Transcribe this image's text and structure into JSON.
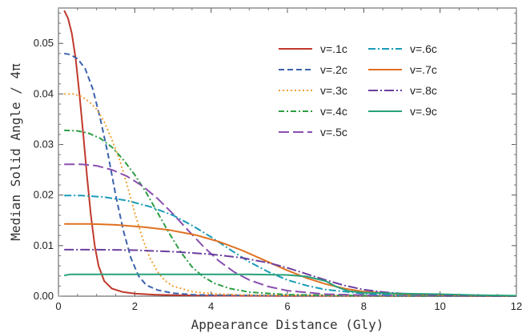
{
  "chart_data": {
    "type": "line",
    "title": "",
    "xlabel": "Appearance Distance (Gly)",
    "ylabel": "Median Solid Angle / 4π",
    "xlim": [
      0,
      12
    ],
    "ylim": [
      0,
      0.057
    ],
    "x_ticks": [
      0,
      2,
      4,
      6,
      8,
      10,
      12
    ],
    "x_tick_labels": [
      "0",
      "2",
      "4",
      "6",
      "8",
      "10",
      "12"
    ],
    "y_ticks": [
      0.0,
      0.01,
      0.02,
      0.03,
      0.04,
      0.05
    ],
    "y_tick_labels": [
      "0.00",
      "0.01",
      "0.02",
      "0.03",
      "0.04",
      "0.05"
    ],
    "grid": false,
    "zero_line": "dotted",
    "legend_position": "top-right",
    "series": [
      {
        "name": "v=.1c",
        "color": "#c0392b",
        "dash": "solid",
        "points": [
          [
            0.15,
            0.0565
          ],
          [
            0.25,
            0.055
          ],
          [
            0.35,
            0.052
          ],
          [
            0.45,
            0.047
          ],
          [
            0.55,
            0.04
          ],
          [
            0.65,
            0.032
          ],
          [
            0.75,
            0.0235
          ],
          [
            0.85,
            0.016
          ],
          [
            0.95,
            0.01
          ],
          [
            1.05,
            0.006
          ],
          [
            1.2,
            0.003
          ],
          [
            1.4,
            0.0015
          ],
          [
            1.7,
            0.0008
          ],
          [
            2.0,
            0.0005
          ],
          [
            2.5,
            0.0003
          ],
          [
            3.0,
            0.0002
          ],
          [
            4.0,
            0.0001
          ],
          [
            6.0,
            5e-05
          ],
          [
            8.0,
            3e-05
          ],
          [
            12.0,
            1e-05
          ]
        ]
      },
      {
        "name": "v=.2c",
        "color": "#3b62ad",
        "dash": "7,4",
        "points": [
          [
            0.15,
            0.048
          ],
          [
            0.3,
            0.0478
          ],
          [
            0.5,
            0.047
          ],
          [
            0.7,
            0.045
          ],
          [
            0.9,
            0.041
          ],
          [
            1.1,
            0.035
          ],
          [
            1.3,
            0.028
          ],
          [
            1.5,
            0.02
          ],
          [
            1.7,
            0.013
          ],
          [
            1.9,
            0.0075
          ],
          [
            2.1,
            0.004
          ],
          [
            2.3,
            0.0022
          ],
          [
            2.6,
            0.0012
          ],
          [
            3.0,
            0.0006
          ],
          [
            3.5,
            0.0003
          ],
          [
            4.0,
            0.0002
          ],
          [
            6.0,
            0.0001
          ],
          [
            8.0,
            5e-05
          ],
          [
            12.0,
            2e-05
          ]
        ]
      },
      {
        "name": "v=.3c",
        "color": "#f0a030",
        "dash": "2,3",
        "points": [
          [
            0.15,
            0.04
          ],
          [
            0.4,
            0.04
          ],
          [
            0.6,
            0.0395
          ],
          [
            0.8,
            0.0385
          ],
          [
            1.0,
            0.037
          ],
          [
            1.2,
            0.0345
          ],
          [
            1.4,
            0.031
          ],
          [
            1.6,
            0.027
          ],
          [
            1.8,
            0.022
          ],
          [
            2.0,
            0.0165
          ],
          [
            2.2,
            0.0115
          ],
          [
            2.4,
            0.0075
          ],
          [
            2.6,
            0.0048
          ],
          [
            2.8,
            0.003
          ],
          [
            3.0,
            0.002
          ],
          [
            3.5,
            0.0009
          ],
          [
            4.0,
            0.0005
          ],
          [
            5.0,
            0.0002
          ],
          [
            7.0,
            0.0001
          ],
          [
            12.0,
            3e-05
          ]
        ]
      },
      {
        "name": "v=.4c",
        "color": "#2e9e44",
        "dash": "7,3,2,3",
        "points": [
          [
            0.15,
            0.0328
          ],
          [
            0.5,
            0.0327
          ],
          [
            0.8,
            0.0322
          ],
          [
            1.1,
            0.0312
          ],
          [
            1.4,
            0.0295
          ],
          [
            1.7,
            0.027
          ],
          [
            2.0,
            0.024
          ],
          [
            2.3,
            0.0205
          ],
          [
            2.6,
            0.0165
          ],
          [
            2.9,
            0.0125
          ],
          [
            3.2,
            0.0088
          ],
          [
            3.5,
            0.0058
          ],
          [
            3.8,
            0.0038
          ],
          [
            4.1,
            0.0025
          ],
          [
            4.5,
            0.0015
          ],
          [
            5.0,
            0.0008
          ],
          [
            6.0,
            0.0003
          ],
          [
            8.0,
            0.0001
          ],
          [
            12.0,
            3e-05
          ]
        ]
      },
      {
        "name": "v=.5c",
        "color": "#8a4fb0",
        "dash": "13,5",
        "points": [
          [
            0.15,
            0.0261
          ],
          [
            0.6,
            0.0261
          ],
          [
            1.0,
            0.0258
          ],
          [
            1.4,
            0.025
          ],
          [
            1.8,
            0.0237
          ],
          [
            2.2,
            0.0218
          ],
          [
            2.6,
            0.0193
          ],
          [
            3.0,
            0.0163
          ],
          [
            3.4,
            0.013
          ],
          [
            3.8,
            0.0098
          ],
          [
            4.2,
            0.007
          ],
          [
            4.6,
            0.0048
          ],
          [
            5.0,
            0.0032
          ],
          [
            5.5,
            0.0019
          ],
          [
            6.0,
            0.0011
          ],
          [
            7.0,
            0.0004
          ],
          [
            8.0,
            0.0002
          ],
          [
            10.0,
            0.0001
          ],
          [
            12.0,
            4e-05
          ]
        ]
      },
      {
        "name": "v=.6c",
        "color": "#1a9bb8",
        "dash": "9,3,2,3",
        "points": [
          [
            0.15,
            0.0199
          ],
          [
            0.6,
            0.0199
          ],
          [
            1.2,
            0.0196
          ],
          [
            1.8,
            0.0189
          ],
          [
            2.4,
            0.0177
          ],
          [
            3.0,
            0.016
          ],
          [
            3.5,
            0.014
          ],
          [
            4.0,
            0.0117
          ],
          [
            4.5,
            0.0092
          ],
          [
            5.0,
            0.0068
          ],
          [
            5.5,
            0.0048
          ],
          [
            6.0,
            0.0032
          ],
          [
            6.5,
            0.0021
          ],
          [
            7.0,
            0.0013
          ],
          [
            8.0,
            0.0005
          ],
          [
            9.0,
            0.0002
          ],
          [
            10.0,
            0.0001
          ],
          [
            12.0,
            5e-05
          ]
        ]
      },
      {
        "name": "v=.7c",
        "color": "#e07020",
        "dash": "solid",
        "points": [
          [
            0.15,
            0.0143
          ],
          [
            0.8,
            0.0143
          ],
          [
            1.5,
            0.0141
          ],
          [
            2.2,
            0.0137
          ],
          [
            2.9,
            0.0131
          ],
          [
            3.6,
            0.0121
          ],
          [
            4.2,
            0.0108
          ],
          [
            4.8,
            0.0091
          ],
          [
            5.4,
            0.0071
          ],
          [
            6.0,
            0.0051
          ],
          [
            6.5,
            0.0036
          ],
          [
            7.0,
            0.0024
          ],
          [
            7.5,
            0.0015
          ],
          [
            8.0,
            0.0009
          ],
          [
            9.0,
            0.0004
          ],
          [
            10.0,
            0.0002
          ],
          [
            11.0,
            0.0001
          ],
          [
            12.0,
            5e-05
          ]
        ]
      },
      {
        "name": "v=.8c",
        "color": "#6b3fa0",
        "dash": "12,3,2,3",
        "points": [
          [
            0.15,
            0.0092
          ],
          [
            1.0,
            0.0092
          ],
          [
            2.0,
            0.0091
          ],
          [
            3.0,
            0.0088
          ],
          [
            4.0,
            0.0083
          ],
          [
            4.8,
            0.0076
          ],
          [
            5.5,
            0.0066
          ],
          [
            6.0,
            0.0056
          ],
          [
            6.5,
            0.0044
          ],
          [
            7.0,
            0.0032
          ],
          [
            7.5,
            0.0021
          ],
          [
            8.0,
            0.0013
          ],
          [
            8.5,
            0.0008
          ],
          [
            9.0,
            0.0005
          ],
          [
            10.0,
            0.0002
          ],
          [
            11.0,
            0.0001
          ],
          [
            12.0,
            5e-05
          ]
        ]
      },
      {
        "name": "v=.9c",
        "color": "#27a07a",
        "dash": "solid",
        "points": [
          [
            0.15,
            0.0041
          ],
          [
            0.3,
            0.0043
          ],
          [
            1.0,
            0.0043
          ],
          [
            2.0,
            0.0043
          ],
          [
            3.0,
            0.0043
          ],
          [
            4.0,
            0.0043
          ],
          [
            5.0,
            0.0043
          ],
          [
            6.0,
            0.0042
          ],
          [
            6.5,
            0.0039
          ],
          [
            7.0,
            0.003
          ],
          [
            7.3,
            0.0018
          ],
          [
            7.6,
            0.001
          ],
          [
            8.0,
            0.0007
          ],
          [
            9.0,
            0.0005
          ],
          [
            10.0,
            0.0004
          ],
          [
            11.0,
            0.0002
          ],
          [
            12.0,
            0.0001
          ]
        ]
      }
    ]
  }
}
